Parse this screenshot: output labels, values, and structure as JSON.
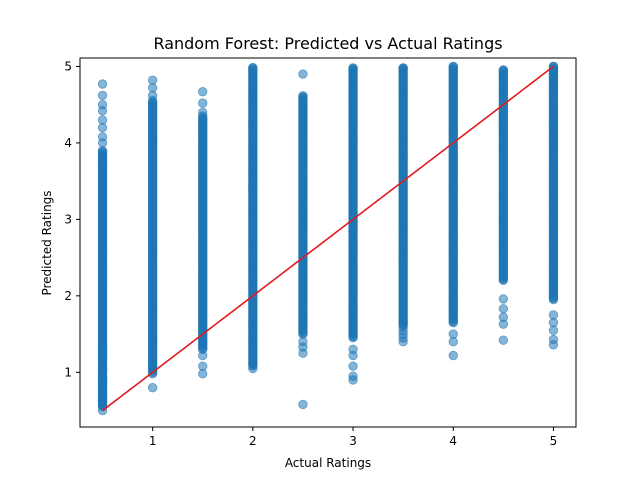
{
  "chart_data": {
    "type": "scatter",
    "title": "Random Forest: Predicted vs Actual Ratings",
    "xlabel": "Actual Ratings",
    "ylabel": "Predicted Ratings",
    "xlim": [
      0.275,
      5.225
    ],
    "ylim": [
      0.285,
      5.11
    ],
    "x_ticks": [
      1,
      2,
      3,
      4,
      5
    ],
    "y_ticks": [
      1,
      2,
      3,
      4,
      5
    ],
    "grid": false,
    "point_color": "#1f77b4",
    "point_alpha": 0.55,
    "reference_line": {
      "color": "#e31a1c",
      "points": [
        [
          0.5,
          0.5
        ],
        [
          5,
          5
        ]
      ]
    },
    "series": [
      {
        "x": 0.5,
        "dense_range": [
          0.55,
          3.9
        ],
        "outliers": [
          0.5,
          0.58,
          0.63,
          0.7,
          0.78,
          0.85,
          0.93,
          1.05,
          1.2,
          1.3,
          4.0,
          4.08,
          4.2,
          4.3,
          4.42,
          4.5,
          4.62,
          4.77
        ]
      },
      {
        "x": 1,
        "dense_range": [
          1.0,
          4.55
        ],
        "outliers": [
          0.8,
          0.98,
          4.62,
          4.72,
          4.82
        ]
      },
      {
        "x": 1.5,
        "dense_range": [
          1.3,
          4.35
        ],
        "outliers": [
          0.98,
          1.08,
          1.22,
          4.4,
          4.52,
          4.67
        ]
      },
      {
        "x": 2,
        "dense_range": [
          1.08,
          4.98
        ],
        "outliers": [
          1.05,
          4.98
        ]
      },
      {
        "x": 2.5,
        "dense_range": [
          1.5,
          4.62
        ],
        "outliers": [
          0.58,
          1.25,
          1.33,
          1.4,
          4.9
        ]
      },
      {
        "x": 3,
        "dense_range": [
          1.45,
          4.98
        ],
        "outliers": [
          0.9,
          0.95,
          1.08,
          1.22,
          1.3,
          4.98
        ]
      },
      {
        "x": 3.5,
        "dense_range": [
          1.6,
          4.98
        ],
        "outliers": [
          1.4,
          1.45,
          1.5,
          1.55,
          4.98
        ]
      },
      {
        "x": 4,
        "dense_range": [
          1.65,
          5.0
        ],
        "outliers": [
          1.22,
          1.4,
          1.5,
          5.0
        ]
      },
      {
        "x": 4.5,
        "dense_range": [
          2.2,
          4.95
        ],
        "outliers": [
          1.42,
          1.63,
          1.72,
          1.83,
          1.96,
          4.95
        ]
      },
      {
        "x": 5,
        "dense_range": [
          1.95,
          5.0
        ],
        "outliers": [
          1.36,
          1.43,
          1.55,
          1.65,
          1.75,
          5.0
        ]
      }
    ]
  }
}
